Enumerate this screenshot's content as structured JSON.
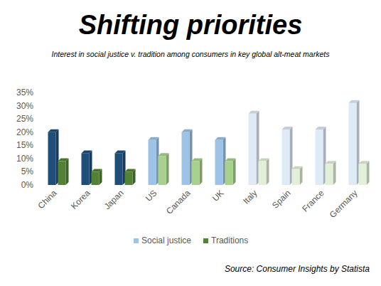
{
  "chart_data": {
    "type": "bar",
    "title": "Shifting priorities",
    "subtitle": "Interest in social justice v. tradition among consumers in key global alt-meat markets",
    "source": "Source: Consumer Insights by Statista",
    "categories": [
      "China",
      "Korea",
      "Japan",
      "US",
      "Canada",
      "UK",
      "Italy",
      "Spain",
      "France",
      "Germany"
    ],
    "series": [
      {
        "name": "Social justice",
        "color": "#9dc3e6",
        "colors": [
          "#1f4e79",
          "#1f4e79",
          "#1f4e79",
          "#9dc3e6",
          "#9dc3e6",
          "#9dc3e6",
          "#deebf7",
          "#deebf7",
          "#deebf7",
          "#deebf7"
        ],
        "values": [
          20,
          12,
          12,
          17,
          20,
          17,
          27,
          21,
          21,
          31
        ]
      },
      {
        "name": "Traditions",
        "color": "#548235",
        "colors": [
          "#548235",
          "#548235",
          "#548235",
          "#a9d18e",
          "#a9d18e",
          "#a9d18e",
          "#e2f0d9",
          "#e2f0d9",
          "#e2f0d9",
          "#e2f0d9"
        ],
        "values": [
          9,
          5,
          5,
          11,
          9,
          9,
          9,
          6,
          8,
          8
        ]
      }
    ],
    "ylim": [
      0,
      35
    ],
    "yticks": [
      {
        "value": 0,
        "label": "0%"
      },
      {
        "value": 5,
        "label": "5%"
      },
      {
        "value": 10,
        "label": "10%"
      },
      {
        "value": 15,
        "label": "15%"
      },
      {
        "value": 20,
        "label": "20%"
      },
      {
        "value": 25,
        "label": "25%"
      },
      {
        "value": 30,
        "label": "30%"
      },
      {
        "value": 35,
        "label": "35%"
      }
    ],
    "grid": false,
    "legend": "bottom"
  }
}
